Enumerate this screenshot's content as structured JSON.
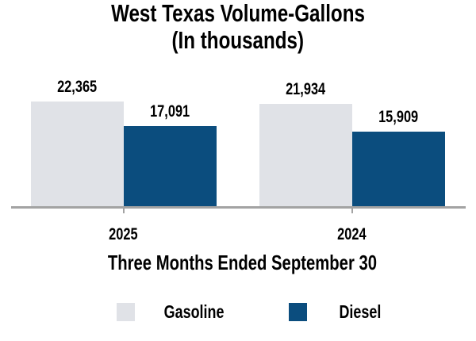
{
  "chart_data": {
    "type": "bar",
    "title": "West Texas Volume-Gallons",
    "subtitle": "(In thousands)",
    "categories": [
      "2025",
      "2024"
    ],
    "series": [
      {
        "name": "Gasoline",
        "color": "#E0E2E7",
        "values": [
          22365,
          21934
        ]
      },
      {
        "name": "Diesel",
        "color": "#0B4D7E",
        "values": [
          17091,
          15909
        ]
      }
    ],
    "xlabel": "Three Months Ended September 30",
    "ylim": [
      0,
      22365
    ],
    "data_labels": true,
    "grid": false,
    "legend_position": "bottom",
    "axis_color": "#A3A3A3"
  }
}
